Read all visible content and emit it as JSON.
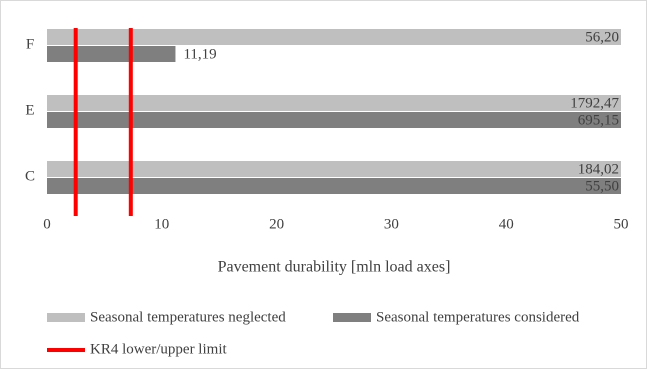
{
  "chart_data": {
    "type": "hbar",
    "xlabel": "Pavement durability [mln load axes]",
    "categories": [
      "C",
      "E",
      "F"
    ],
    "series": [
      {
        "name": "Seasonal temperatures neglected",
        "color": "#bfbfbf",
        "values": [
          184.02,
          1792.47,
          56.2
        ],
        "value_labels": [
          "184,02",
          "1792,47",
          "56,20"
        ]
      },
      {
        "name": "Seasonal temperatures considered",
        "color": "#7f7f7f",
        "values": [
          55.5,
          695.15,
          11.19
        ],
        "value_labels": [
          "55,50",
          "695,15",
          "11,19"
        ]
      }
    ],
    "limits": {
      "name": "KR4 lower/upper limit",
      "color": "#ff0000",
      "values": [
        2.5,
        7.3
      ]
    },
    "xlim": [
      0,
      50
    ],
    "xticks": [
      0,
      10,
      20,
      30,
      40,
      50
    ],
    "grid": false
  }
}
